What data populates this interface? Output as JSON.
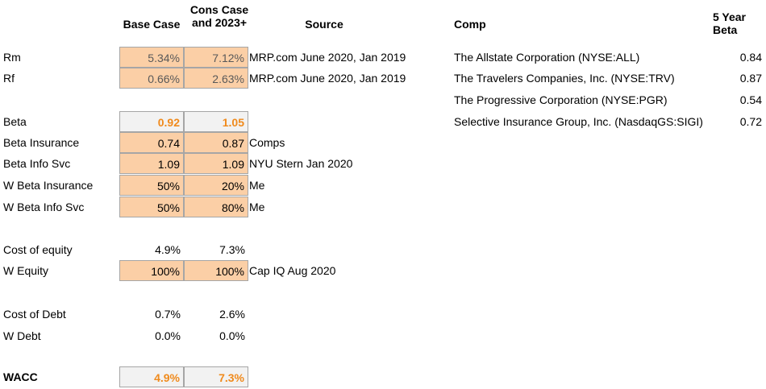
{
  "headers": {
    "base_case": "Base Case",
    "cons_case": "Cons Case and 2023+",
    "source": "Source",
    "comp": "Comp",
    "five_year_beta": "5 Year Beta"
  },
  "rows": {
    "rm": {
      "label": "Rm",
      "base": "5.34%",
      "cons": "7.12%",
      "source": "MRP.com June 2020, Jan 2019"
    },
    "rf": {
      "label": "Rf",
      "base": "0.66%",
      "cons": "2.63%",
      "source": "MRP.com June 2020, Jan 2019"
    },
    "beta": {
      "label": "Beta",
      "base": "0.92",
      "cons": "1.05"
    },
    "beta_ins": {
      "label": "Beta Insurance",
      "base": "0.74",
      "cons": "0.87",
      "source": "Comps"
    },
    "beta_info": {
      "label": "Beta Info Svc",
      "base": "1.09",
      "cons": "1.09",
      "source": "NYU Stern Jan 2020"
    },
    "w_beta_ins": {
      "label": "W Beta Insurance",
      "base": "50%",
      "cons": "20%",
      "source": "Me"
    },
    "w_beta_info": {
      "label": "W Beta Info Svc",
      "base": "50%",
      "cons": "80%",
      "source": "Me"
    },
    "cost_equity": {
      "label": "Cost of equity",
      "base": "4.9%",
      "cons": "7.3%"
    },
    "w_equity": {
      "label": "W Equity",
      "base": "100%",
      "cons": "100%",
      "source": "Cap IQ Aug 2020"
    },
    "cost_debt": {
      "label": "Cost of Debt",
      "base": "0.7%",
      "cons": "2.6%"
    },
    "w_debt": {
      "label": "W Debt",
      "base": "0.0%",
      "cons": "0.0%"
    },
    "wacc": {
      "label": "WACC",
      "base": "4.9%",
      "cons": "7.3%"
    }
  },
  "comps": [
    {
      "name": "The Allstate Corporation (NYSE:ALL)",
      "beta": "0.84"
    },
    {
      "name": "The Travelers Companies, Inc. (NYSE:TRV)",
      "beta": "0.87"
    },
    {
      "name": "The Progressive Corporation (NYSE:PGR)",
      "beta": "0.54"
    },
    {
      "name": "Selective Insurance Group, Inc. (NasdaqGS:SIGI)",
      "beta": "0.72"
    }
  ],
  "colors": {
    "input_fill": "#fbcfa6",
    "output_text": "#f08a1c",
    "calc_fill": "#f2f2f2"
  }
}
